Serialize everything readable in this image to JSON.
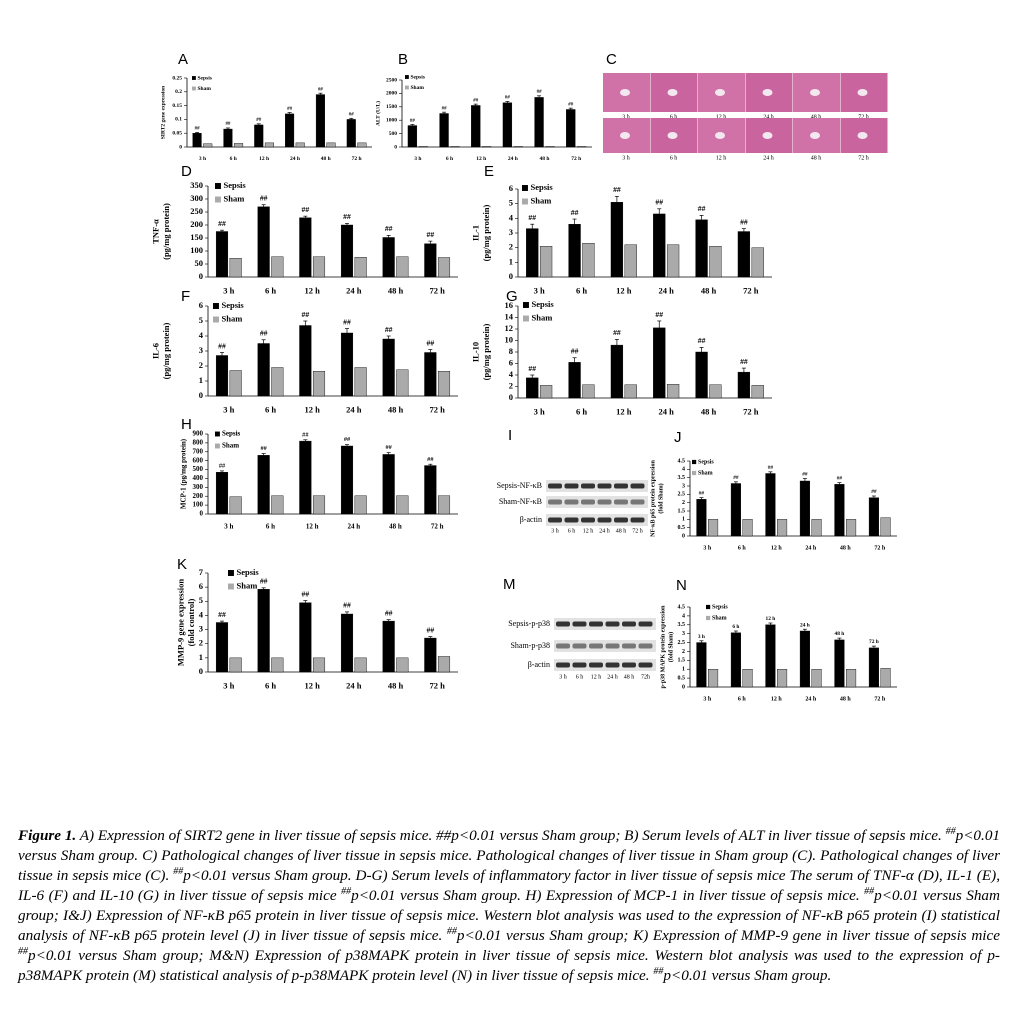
{
  "chart_data": [
    {
      "type": "bar",
      "label": "A",
      "ylabel": [
        "SIRT2 gene expression"
      ],
      "categories": [
        "3 h",
        "6 h",
        "12 h",
        "24 h",
        "48 h",
        "72 h"
      ],
      "series": [
        {
          "name": "Sepsis",
          "color": "#000000",
          "values": [
            0.05,
            0.065,
            0.08,
            0.12,
            0.19,
            0.1
          ],
          "errors": [
            0.003,
            0.004,
            0.004,
            0.005,
            0.005,
            0.004
          ]
        },
        {
          "name": "Sham",
          "color": "#aaaaaa",
          "values": [
            0.012,
            0.013,
            0.015,
            0.015,
            0.015,
            0.015
          ]
        }
      ],
      "annotations": [
        "##",
        "##",
        "##",
        "##",
        "##",
        "##"
      ],
      "ylim": [
        0,
        0.25
      ],
      "yticks": [
        0,
        0.05,
        0.1,
        0.15,
        0.2,
        0.25
      ]
    },
    {
      "type": "bar",
      "label": "B",
      "ylabel": [
        "ALT (U/L)"
      ],
      "categories": [
        "3 h",
        "6 h",
        "12 h",
        "24 h",
        "48 h",
        "72 h"
      ],
      "series": [
        {
          "name": "Sepsis",
          "color": "#000000",
          "values": [
            800,
            1250,
            1550,
            1650,
            1850,
            1400
          ],
          "errors": [
            40,
            50,
            50,
            50,
            60,
            50
          ]
        },
        {
          "name": "Sham",
          "color": "#aaaaaa",
          "values": [
            20,
            20,
            20,
            20,
            20,
            20
          ]
        }
      ],
      "annotations": [
        "##",
        "##",
        "##",
        "##",
        "##",
        "##"
      ],
      "ylim": [
        0,
        2500
      ],
      "yticks": [
        0,
        500,
        1000,
        1500,
        2000,
        2500
      ]
    },
    {
      "type": "bar",
      "label": "D",
      "ylabel": [
        "TNF-α",
        "(pg/mg protein)"
      ],
      "categories": [
        "3 h",
        "6 h",
        "12 h",
        "24 h",
        "48 h",
        "72 h"
      ],
      "series": [
        {
          "name": "Sepsis",
          "color": "#000000",
          "values": [
            175,
            270,
            228,
            200,
            152,
            128
          ],
          "errors": [
            5,
            8,
            6,
            6,
            8,
            10
          ]
        },
        {
          "name": "Sham",
          "color": "#aaaaaa",
          "values": [
            72,
            78,
            78,
            76,
            78,
            75
          ]
        }
      ],
      "annotations": [
        "##",
        "##",
        "##",
        "##",
        "##",
        "##"
      ],
      "ylim": [
        0,
        350
      ],
      "yticks": [
        0,
        50,
        100,
        150,
        200,
        250,
        300,
        350
      ]
    },
    {
      "type": "bar",
      "label": "E",
      "ylabel": [
        "IL-1",
        "(pg/mg protein)"
      ],
      "categories": [
        "3 h",
        "6 h",
        "12 h",
        "24 h",
        "48 h",
        "72 h"
      ],
      "series": [
        {
          "name": "Sepsis",
          "color": "#000000",
          "values": [
            3.3,
            3.6,
            5.1,
            4.3,
            3.9,
            3.1
          ],
          "errors": [
            0.3,
            0.35,
            0.4,
            0.35,
            0.3,
            0.2
          ]
        },
        {
          "name": "Sham",
          "color": "#aaaaaa",
          "values": [
            2.1,
            2.3,
            2.2,
            2.2,
            2.1,
            2.0
          ]
        }
      ],
      "annotations": [
        "##",
        "##",
        "##",
        "##",
        "##",
        "##"
      ],
      "ylim": [
        0,
        6
      ],
      "yticks": [
        0,
        1,
        2,
        3,
        4,
        5,
        6
      ]
    },
    {
      "type": "bar",
      "label": "F",
      "ylabel": [
        "IL-6",
        "(pg/mg protein)"
      ],
      "categories": [
        "3 h",
        "6 h",
        "12 h",
        "24 h",
        "48 h",
        "72 h"
      ],
      "series": [
        {
          "name": "Sepsis",
          "color": "#000000",
          "values": [
            2.7,
            3.5,
            4.7,
            4.2,
            3.8,
            2.9
          ],
          "errors": [
            0.2,
            0.25,
            0.3,
            0.3,
            0.2,
            0.2
          ]
        },
        {
          "name": "Sham",
          "color": "#aaaaaa",
          "values": [
            1.7,
            1.9,
            1.65,
            1.9,
            1.75,
            1.65
          ]
        }
      ],
      "annotations": [
        "##",
        "##",
        "##",
        "##",
        "##",
        "##"
      ],
      "ylim": [
        0,
        6
      ],
      "yticks": [
        0,
        1,
        2,
        3,
        4,
        5,
        6
      ]
    },
    {
      "type": "bar",
      "label": "G",
      "ylabel": [
        "IL-10",
        "(pg/mg protein)"
      ],
      "categories": [
        "3 h",
        "6 h",
        "12 h",
        "24 h",
        "48 h",
        "72 h"
      ],
      "series": [
        {
          "name": "Sepsis",
          "color": "#000000",
          "values": [
            3.5,
            6.2,
            9.2,
            12.2,
            8,
            4.5
          ],
          "errors": [
            0.5,
            0.8,
            1,
            1.2,
            0.8,
            0.7
          ]
        },
        {
          "name": "Sham",
          "color": "#aaaaaa",
          "values": [
            2.2,
            2.3,
            2.3,
            2.4,
            2.3,
            2.2
          ]
        }
      ],
      "annotations": [
        "##",
        "##",
        "##",
        "##",
        "##",
        "##"
      ],
      "ylim": [
        0,
        16
      ],
      "yticks": [
        0,
        2,
        4,
        6,
        8,
        10,
        12,
        14,
        16
      ]
    },
    {
      "type": "bar",
      "label": "H",
      "ylabel": [
        "MCP-1 (pg/mg protein)"
      ],
      "categories": [
        "3 h",
        "6 h",
        "12 h",
        "24 h",
        "48 h",
        "72 h"
      ],
      "series": [
        {
          "name": "Sepsis",
          "color": "#000000",
          "values": [
            470,
            660,
            820,
            765,
            670,
            545
          ],
          "errors": [
            15,
            20,
            15,
            15,
            20,
            15
          ]
        },
        {
          "name": "Sham",
          "color": "#aaaaaa",
          "values": [
            195,
            205,
            205,
            205,
            205,
            205
          ]
        }
      ],
      "annotations": [
        "##",
        "##",
        "##",
        "##",
        "##",
        "##"
      ],
      "ylim": [
        0,
        900
      ],
      "yticks": [
        0,
        100,
        200,
        300,
        400,
        500,
        600,
        700,
        800,
        900
      ]
    },
    {
      "type": "bar",
      "label": "J",
      "ylabel": [
        "NF-κB p65 protein expression",
        "(fold Sham)"
      ],
      "categories": [
        "3 h",
        "6 h",
        "12 h",
        "24 h",
        "48 h",
        "72 h"
      ],
      "series": [
        {
          "name": "Sepsis",
          "color": "#000000",
          "values": [
            2.2,
            3.15,
            3.75,
            3.3,
            3.1,
            2.3
          ],
          "errors": [
            0.1,
            0.1,
            0.1,
            0.15,
            0.1,
            0.1
          ]
        },
        {
          "name": "Sham",
          "color": "#aaaaaa",
          "values": [
            1,
            1,
            1,
            1,
            1,
            1.1
          ]
        }
      ],
      "annotations": [
        "##",
        "##",
        "##",
        "##",
        "##",
        "##"
      ],
      "ylim": [
        0,
        4.5
      ],
      "yticks": [
        0,
        0.5,
        1,
        1.5,
        2,
        2.5,
        3,
        3.5,
        4,
        4.5
      ]
    },
    {
      "type": "bar",
      "label": "K",
      "ylabel": [
        "MMP-9 gene expression",
        "(fold control)"
      ],
      "categories": [
        "3 h",
        "6 h",
        "12 h",
        "24 h",
        "48 h",
        "72 h"
      ],
      "series": [
        {
          "name": "Sepsis",
          "color": "#000000",
          "values": [
            3.5,
            5.85,
            4.9,
            4.1,
            3.6,
            2.4
          ],
          "errors": [
            0.1,
            0.1,
            0.15,
            0.15,
            0.1,
            0.1
          ]
        },
        {
          "name": "Sham",
          "color": "#aaaaaa",
          "values": [
            1,
            1,
            1,
            1,
            1,
            1.1
          ]
        }
      ],
      "annotations": [
        "##",
        "##",
        "##",
        "##",
        "##",
        "##"
      ],
      "ylim": [
        0,
        7
      ],
      "yticks": [
        0,
        1,
        2,
        3,
        4,
        5,
        6,
        7
      ]
    },
    {
      "type": "bar",
      "label": "N",
      "ylabel": [
        "p-p38 MAPK protein expression",
        "(fold Sham)"
      ],
      "categories": [
        "3 h",
        "6 h",
        "12 h",
        "24 h",
        "48 h",
        "72 h"
      ],
      "series": [
        {
          "name": "Sepsis",
          "color": "#000000",
          "values": [
            2.5,
            3.05,
            3.5,
            3.15,
            2.65,
            2.2
          ],
          "errors": [
            0.1,
            0.1,
            0.1,
            0.1,
            0.1,
            0.1
          ]
        },
        {
          "name": "Sham",
          "color": "#aaaaaa",
          "values": [
            1,
            1,
            1,
            1,
            1,
            1.05
          ]
        }
      ],
      "annotations": [
        "3 h",
        "6 h",
        "12 h",
        "24 h",
        "48 h",
        "72 h"
      ],
      "ylim": [
        0,
        4.5
      ],
      "yticks": [
        0,
        0.5,
        1,
        1.5,
        2,
        2.5,
        3,
        3.5,
        4,
        4.5
      ]
    }
  ],
  "histology": {
    "label": "C",
    "times": [
      "3 h",
      "6 h",
      "12 h",
      "24 h",
      "48 h",
      "72 h"
    ]
  },
  "blot_i": {
    "label": "I",
    "rows": [
      "Sepsis-NF-κB",
      "Sham-NF-κB",
      "β-actin"
    ],
    "lanes": [
      "3 h",
      "6 h",
      "12 h",
      "24 h",
      "48 h",
      "72 h"
    ]
  },
  "blot_m": {
    "label": "M",
    "rows": [
      "Sepsis-p-p38",
      "Sham-p-p38",
      "β-actin"
    ],
    "lanes": [
      "3 h",
      "6 h",
      "12 h",
      "24 h",
      "48 h",
      "72h"
    ]
  },
  "caption": {
    "bold": "Figure 1.",
    "parts": [
      " A) Expression of SIRT2 gene in liver tissue of sepsis mice. ##p<0.01 versus Sham group; B) Serum levels of ALT in liver tissue of sepsis mice. ",
      {
        "text": "##",
        "sup": true
      },
      "p<0.01 versus Sham group. C) Pathological changes of liver tissue in sepsis mice. Pathological changes of liver tissue in Sham group (C). Pathological changes of liver tissue in sepsis mice (C). ",
      {
        "text": "##",
        "sup": true
      },
      "p<0.01 versus Sham group. D-G) Serum levels of inflammatory factor in liver tissue of sepsis mice The serum of TNF-α (D), IL-1 (E), IL-6 (F) and IL-10 (G) in liver tissue of sepsis mice ",
      {
        "text": "##",
        "sup": true
      },
      "p<0.01 versus Sham group. H) Expression of MCP-1 in liver tissue of sepsis mice. ",
      {
        "text": "##",
        "sup": true
      },
      "p<0.01 versus Sham group; I&J) Expression of NF-κB p65 protein in liver tissue of sepsis mice. Western blot analysis was used to the expression of NF-κB p65 protein (I) statistical analysis of NF-κB p65 protein level (J) in liver tissue of sepsis mice. ",
      {
        "text": "##",
        "sup": true
      },
      "p<0.01 versus Sham group; K) Expression of MMP-9 gene in liver tissue of sepsis mice ",
      {
        "text": "##",
        "sup": true
      },
      "p<0.01 versus Sham group; M&N) Expression of p38MAPK protein in liver tissue of sepsis mice. Western blot analysis was used to the expression of p-p38MAPK protein (M) statistical analysis of p-p38MAPK protein level (N) in liver tissue of sepsis mice. ",
      {
        "text": "##",
        "sup": true
      },
      "p<0.01 versus Sham group."
    ]
  }
}
